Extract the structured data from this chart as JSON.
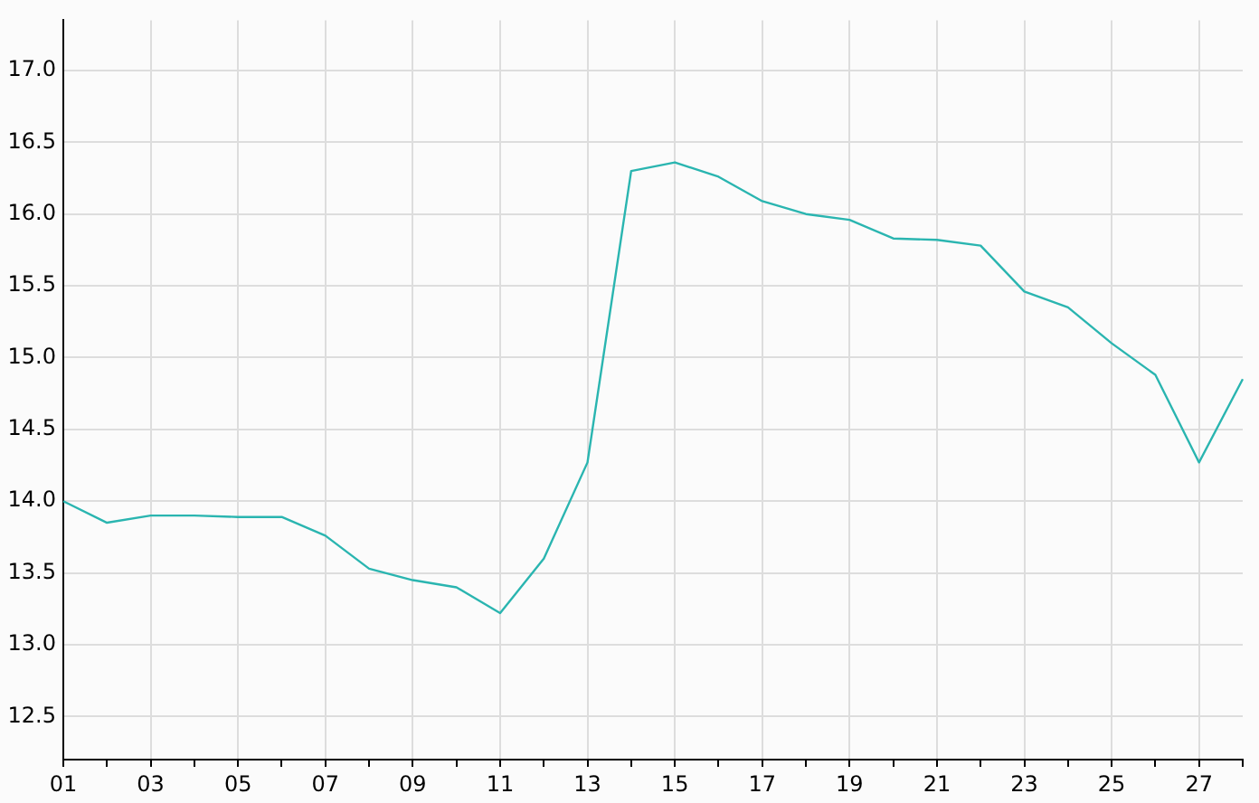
{
  "chart_data": {
    "type": "line",
    "categories": [
      "01",
      null,
      "03",
      null,
      "05",
      null,
      "07",
      null,
      "09",
      null,
      "11",
      null,
      "13",
      null,
      "15",
      null,
      "17",
      null,
      "19",
      null,
      "21",
      null,
      "23",
      null,
      "25",
      null,
      "27",
      null
    ],
    "series": [
      {
        "color": "#2ab5b0",
        "values": [
          14.0,
          13.85,
          13.9,
          13.9,
          13.89,
          13.89,
          13.76,
          13.53,
          13.45,
          13.4,
          13.22,
          13.6,
          14.27,
          16.3,
          16.36,
          16.26,
          16.09,
          16.0,
          15.96,
          15.83,
          15.82,
          15.78,
          15.46,
          15.35,
          15.1,
          14.88,
          14.27,
          14.85
        ]
      }
    ],
    "ylim": [
      12.2,
      17.35
    ],
    "yticks": [
      {
        "value": 12.5,
        "label": "12.5"
      },
      {
        "value": 13,
        "label": "13.0"
      },
      {
        "value": 13.5,
        "label": "13.5"
      },
      {
        "value": 14,
        "label": "14.0"
      },
      {
        "value": 14.5,
        "label": "14.5"
      },
      {
        "value": 15,
        "label": "15.0"
      },
      {
        "value": 15.5,
        "label": "15.5"
      },
      {
        "value": 16,
        "label": "16.0"
      },
      {
        "value": 16.5,
        "label": "16.5"
      },
      {
        "value": 17,
        "label": "17.0"
      }
    ],
    "grid": true,
    "legend": false,
    "marker": "none",
    "line_style": "solid"
  }
}
